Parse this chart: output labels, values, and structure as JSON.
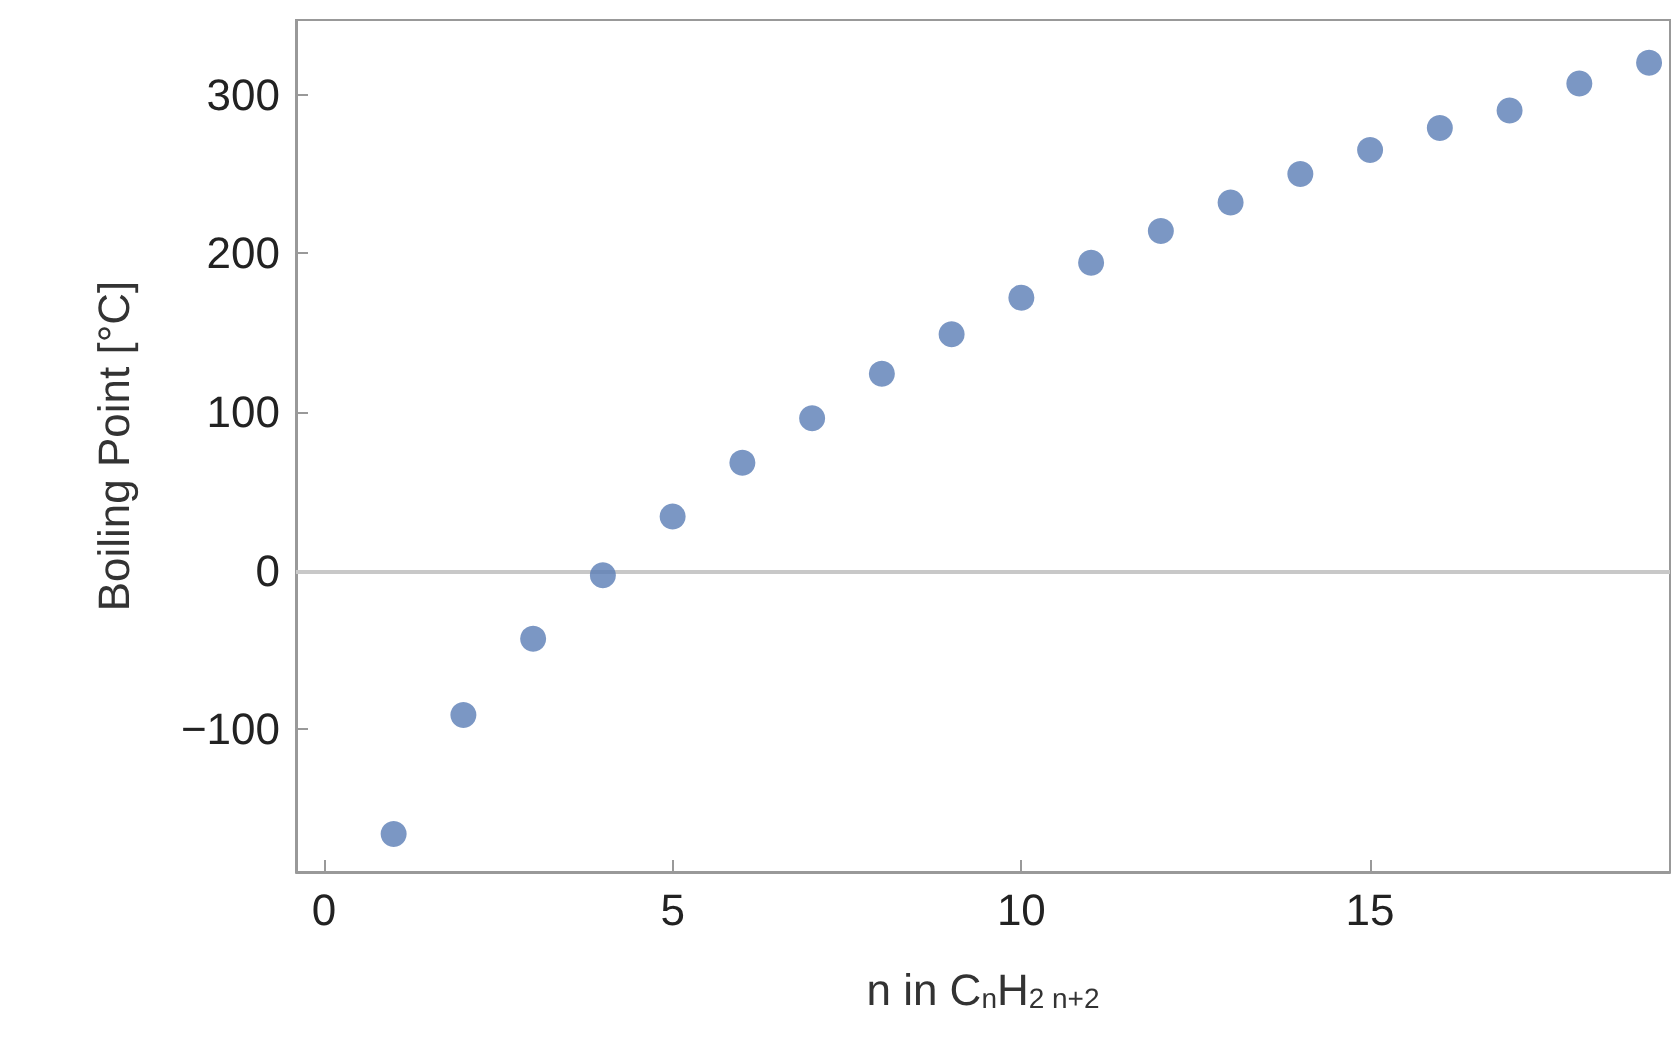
{
  "chart_data": {
    "type": "scatter",
    "xlabel": "n in C$_{n}$H$_{2 n+2}$",
    "ylabel": "Boiling Point [°C]",
    "x": [
      1,
      2,
      3,
      4,
      5,
      6,
      7,
      8,
      9,
      10,
      11,
      12,
      13,
      14,
      15,
      16,
      17,
      18,
      19
    ],
    "series": [
      {
        "color": "#5a7db5",
        "values": [
          -166,
          -91,
          -43,
          -3,
          34,
          68,
          96,
          124,
          149,
          172,
          194,
          214,
          232,
          250,
          265,
          279,
          290,
          307,
          320
        ]
      }
    ],
    "xlim": [
      -0.4,
      19.3
    ],
    "xticks": [
      0,
      5,
      10,
      15
    ],
    "ylim": [
      -190,
      347
    ],
    "yticks": [
      {
        "value": -100,
        "label": "−100"
      },
      0,
      100,
      200,
      300
    ],
    "ref_lines": [
      {
        "axis": "y",
        "value": 0,
        "color": "#c8c8c8"
      }
    ],
    "marker": "circle"
  }
}
